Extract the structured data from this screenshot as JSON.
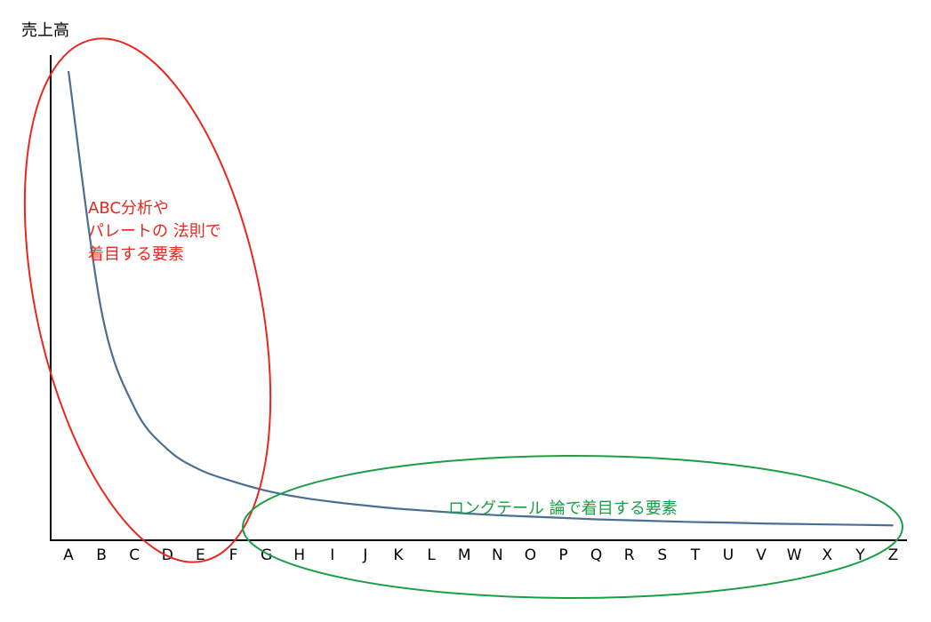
{
  "chart_data": {
    "type": "line",
    "title": "",
    "xlabel": "",
    "ylabel": "売上高",
    "categories": [
      "A",
      "B",
      "C",
      "D",
      "E",
      "F",
      "G",
      "H",
      "I",
      "J",
      "K",
      "L",
      "M",
      "N",
      "O",
      "P",
      "Q",
      "R",
      "S",
      "T",
      "U",
      "V",
      "W",
      "X",
      "Y",
      "Z"
    ],
    "series": [
      {
        "values": [
          100,
          48,
          27,
          18,
          13.5,
          11,
          9,
          7.6,
          6.6,
          5.8,
          5.1,
          4.6,
          4.1,
          3.7,
          3.4,
          3.1,
          2.8,
          2.6,
          2.4,
          2.2,
          2.1,
          1.9,
          1.8,
          1.7,
          1.6,
          1.5
        ],
        "color": "#4a6f94"
      }
    ],
    "ylim": [
      0,
      104
    ],
    "grid": false,
    "annotations": [
      {
        "lines": [
          "ABC分析や",
          "パレートの 法則で",
          "着目する要素"
        ],
        "color": "#e8281e",
        "range": [
          "A",
          "F"
        ]
      },
      {
        "lines": [
          "ロングテール 論で着目する要素"
        ],
        "color": "#1a9e46",
        "range": [
          "G",
          "Z"
        ]
      }
    ]
  }
}
